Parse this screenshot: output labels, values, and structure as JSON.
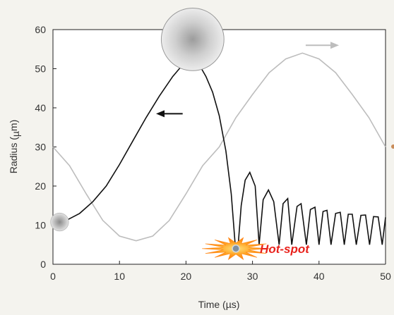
{
  "chart_data": {
    "type": "line",
    "title": "",
    "xlabel": "Time (µs)",
    "ylabel_parts": [
      "Radius (",
      "µ",
      "m)"
    ],
    "xlim": [
      0,
      50
    ],
    "ylim": [
      0,
      60
    ],
    "x_ticks": [
      "0",
      "10",
      "20",
      "30",
      "40",
      "50"
    ],
    "y_ticks": [
      "0",
      "10",
      "20",
      "30",
      "40",
      "50",
      "60"
    ],
    "grid": false,
    "series": [
      {
        "role": "bubble radius",
        "color": "#111111",
        "x": [
          1,
          2,
          4,
          6,
          8,
          10,
          12,
          14,
          16,
          18,
          20,
          21,
          22,
          23,
          24,
          25,
          26,
          26.8,
          27.4,
          27.8,
          28.3,
          28.9,
          29.6,
          30.4,
          31.0,
          31.6,
          32.4,
          33.2,
          34.0,
          34.6,
          35.3,
          35.9,
          36.7,
          37.3,
          38.1,
          38.7,
          39.4,
          40.0,
          40.6,
          41.2,
          41.8,
          42.5,
          43.2,
          43.8,
          44.4,
          45.0,
          45.6,
          46.3,
          47.0,
          47.6,
          48.2,
          48.9,
          49.5,
          50
        ],
        "y": [
          10.8,
          11.2,
          13,
          16,
          20,
          25.5,
          31.5,
          37.5,
          43,
          48,
          52,
          53,
          51,
          48,
          44,
          38,
          29,
          18,
          5,
          4,
          15,
          21.5,
          23.5,
          20,
          5,
          16.5,
          19,
          16,
          5,
          15.5,
          16.8,
          5,
          14.8,
          15.5,
          5,
          14,
          14.6,
          5,
          13.5,
          13.8,
          5,
          13,
          13.3,
          5,
          12.8,
          12.8,
          5,
          12.5,
          12.6,
          5,
          12.2,
          12.1,
          5,
          12
        ]
      },
      {
        "role": "acoustic pressure",
        "color": "#bdbdbd",
        "x": [
          0,
          2.5,
          5,
          7.5,
          10,
          12.5,
          15,
          17.5,
          20,
          22.5,
          25,
          27.5,
          30,
          32.5,
          35,
          37.5,
          40,
          42.5,
          45,
          47.5,
          50
        ],
        "y": [
          30,
          25.2,
          18,
          11.2,
          7.2,
          6,
          7.2,
          11.2,
          18,
          25.2,
          30,
          37.5,
          43.4,
          49,
          52.5,
          54,
          52.5,
          49,
          43.4,
          37.5,
          30
        ]
      }
    ],
    "annotations": {
      "hot_spot": {
        "label": "Hot-spot",
        "x": 27.5,
        "y": 4
      },
      "small_bubble": {
        "x": 1,
        "y": 10.8,
        "radius_units": 2.3
      },
      "big_bubble": {
        "x": 21,
        "y": 57.5,
        "radius_units": 8
      },
      "left_arrow": {
        "x_from": 19.5,
        "x_to": 15.5,
        "y": 38.5,
        "color": "#111111"
      },
      "right_arrow": {
        "x_from": 38,
        "x_to": 43,
        "y": 56,
        "color": "#bdbdbd"
      }
    }
  }
}
